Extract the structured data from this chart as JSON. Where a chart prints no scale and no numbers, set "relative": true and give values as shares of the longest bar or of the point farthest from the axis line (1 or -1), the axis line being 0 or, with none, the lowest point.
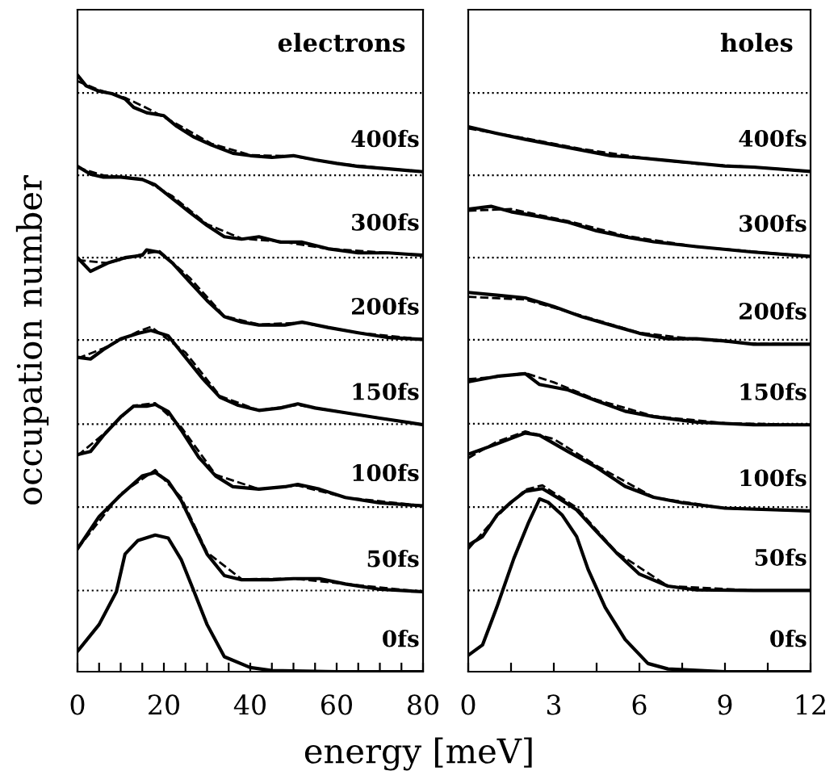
{
  "chart_data": [
    {
      "type": "line",
      "title": "electrons",
      "xlabel": "energy [meV]",
      "ylabel": "occupation number",
      "relative": true,
      "tick_labels": "x",
      "legend": false,
      "grid": false,
      "xlim": [
        0,
        80
      ],
      "xticks": [
        0,
        {
          "value": 5,
          "label": null
        },
        {
          "value": 10,
          "label": null
        },
        {
          "value": 15,
          "label": null
        },
        20,
        {
          "value": 25,
          "label": null
        },
        {
          "value": 30,
          "label": null
        },
        {
          "value": 35,
          "label": null
        },
        40,
        {
          "value": 45,
          "label": null
        },
        {
          "value": 50,
          "label": null
        },
        {
          "value": 55,
          "label": null
        },
        60,
        {
          "value": 65,
          "label": null
        },
        {
          "value": 70,
          "label": null
        },
        {
          "value": 75,
          "label": null
        },
        80
      ],
      "ref_lines": [
        {
          "axis": "y",
          "value": 0.136,
          "line_style": "dotted",
          "color": "#000000"
        },
        {
          "axis": "y",
          "value": 0.276,
          "line_style": "dotted",
          "color": "#000000"
        },
        {
          "axis": "y",
          "value": 0.415,
          "line_style": "dotted",
          "color": "#000000"
        },
        {
          "axis": "y",
          "value": 0.556,
          "line_style": "dotted",
          "color": "#000000"
        },
        {
          "axis": "y",
          "value": 0.694,
          "line_style": "dotted",
          "color": "#000000"
        },
        {
          "axis": "y",
          "value": 0.832,
          "line_style": "dotted",
          "color": "#000000"
        },
        {
          "axis": "y",
          "value": 0.97,
          "line_style": "dotted",
          "color": "#000000"
        }
      ],
      "series": [
        {
          "name": "0fs",
          "color": "#000000",
          "line_style": "solid",
          "x": [
            0,
            5,
            9,
            11,
            14,
            18,
            21,
            24,
            27,
            30,
            34,
            40,
            45,
            60,
            80
          ],
          "values": [
            0.034,
            0.079,
            0.134,
            0.197,
            0.22,
            0.229,
            0.224,
            0.188,
            0.134,
            0.079,
            0.025,
            0.007,
            0.002,
            0,
            0
          ]
        },
        {
          "name": "50fs",
          "color": "#000000",
          "line_style": "solid",
          "x": [
            0,
            5,
            10,
            15,
            18,
            21,
            24,
            27,
            30,
            34,
            38,
            45,
            50,
            56,
            62,
            70,
            80
          ],
          "values": [
            0.206,
            0.26,
            0.296,
            0.328,
            0.334,
            0.319,
            0.287,
            0.242,
            0.197,
            0.161,
            0.154,
            0.154,
            0.156,
            0.156,
            0.147,
            0.138,
            0.134
          ]
        },
        {
          "color": "#000000",
          "line_style": "dashed",
          "x": [
            0,
            10,
            18,
            24,
            30,
            38,
            50,
            62,
            80
          ],
          "values": [
            0.206,
            0.298,
            0.338,
            0.292,
            0.2,
            0.155,
            0.156,
            0.147,
            0.134
          ]
        },
        {
          "name": "100fs",
          "color": "#000000",
          "line_style": "solid",
          "x": [
            0,
            3,
            6,
            10,
            13,
            16,
            18,
            21,
            24,
            28,
            32,
            36,
            42,
            48,
            51,
            56,
            62,
            70,
            80
          ],
          "values": [
            0.364,
            0.369,
            0.396,
            0.427,
            0.445,
            0.445,
            0.448,
            0.436,
            0.405,
            0.36,
            0.328,
            0.31,
            0.306,
            0.31,
            0.314,
            0.306,
            0.292,
            0.283,
            0.278
          ]
        },
        {
          "color": "#000000",
          "line_style": "dashed",
          "x": [
            0,
            6,
            13,
            18,
            24,
            32,
            42,
            51,
            62,
            80
          ],
          "values": [
            0.362,
            0.398,
            0.446,
            0.45,
            0.41,
            0.33,
            0.306,
            0.312,
            0.292,
            0.278
          ]
        },
        {
          "name": "150fs",
          "color": "#000000",
          "line_style": "solid",
          "x": [
            0,
            3,
            6,
            10,
            14,
            17,
            21,
            25,
            29,
            33,
            37,
            42,
            47,
            51,
            55,
            62,
            70,
            80
          ],
          "values": [
            0.527,
            0.524,
            0.54,
            0.558,
            0.567,
            0.572,
            0.563,
            0.527,
            0.491,
            0.46,
            0.447,
            0.438,
            0.442,
            0.449,
            0.442,
            0.434,
            0.425,
            0.414
          ]
        },
        {
          "color": "#000000",
          "line_style": "dashed",
          "x": [
            0,
            6,
            14,
            17,
            25,
            33,
            42,
            51,
            62,
            80
          ],
          "values": [
            0.525,
            0.542,
            0.57,
            0.578,
            0.535,
            0.462,
            0.438,
            0.447,
            0.434,
            0.414
          ]
        },
        {
          "name": "200fs",
          "color": "#000000",
          "line_style": "solid",
          "x": [
            0,
            3,
            7,
            11,
            15,
            16,
            19,
            22,
            26,
            30,
            34,
            38,
            42,
            48,
            52,
            58,
            65,
            72,
            80
          ],
          "values": [
            0.694,
            0.671,
            0.685,
            0.694,
            0.698,
            0.707,
            0.703,
            0.685,
            0.653,
            0.622,
            0.595,
            0.586,
            0.581,
            0.581,
            0.586,
            0.577,
            0.568,
            0.56,
            0.557
          ]
        },
        {
          "color": "#000000",
          "line_style": "dashed",
          "x": [
            0,
            7,
            15,
            19,
            26,
            34,
            42,
            52,
            65,
            80
          ],
          "values": [
            0.69,
            0.685,
            0.7,
            0.705,
            0.66,
            0.596,
            0.582,
            0.585,
            0.568,
            0.557
          ]
        },
        {
          "name": "300fs",
          "color": "#000000",
          "line_style": "solid",
          "x": [
            0,
            3,
            6,
            10,
            15,
            18,
            22,
            26,
            30,
            34,
            38,
            42,
            47,
            52,
            58,
            65,
            72,
            80
          ],
          "values": [
            0.847,
            0.834,
            0.829,
            0.829,
            0.825,
            0.816,
            0.793,
            0.77,
            0.748,
            0.729,
            0.725,
            0.729,
            0.72,
            0.72,
            0.709,
            0.702,
            0.702,
            0.698
          ]
        },
        {
          "color": "#000000",
          "line_style": "dashed",
          "x": [
            0,
            6,
            15,
            22,
            30,
            38,
            47,
            58,
            72,
            80
          ],
          "values": [
            0.845,
            0.832,
            0.826,
            0.797,
            0.75,
            0.726,
            0.721,
            0.709,
            0.702,
            0.698
          ]
        },
        {
          "name": "400fs",
          "color": "#000000",
          "line_style": "solid",
          "x": [
            0,
            2,
            5,
            8,
            11,
            13,
            16,
            20,
            23,
            27,
            31,
            36,
            40,
            45,
            50,
            55,
            60,
            65,
            72,
            80
          ],
          "values": [
            1.0,
            0.982,
            0.973,
            0.969,
            0.96,
            0.946,
            0.937,
            0.932,
            0.914,
            0.896,
            0.883,
            0.869,
            0.865,
            0.862,
            0.865,
            0.858,
            0.852,
            0.847,
            0.843,
            0.838
          ]
        },
        {
          "color": "#000000",
          "line_style": "dashed",
          "x": [
            0,
            5,
            11,
            16,
            23,
            31,
            40,
            50,
            60,
            72,
            80
          ],
          "values": [
            0.99,
            0.975,
            0.962,
            0.945,
            0.918,
            0.885,
            0.866,
            0.864,
            0.852,
            0.843,
            0.838
          ]
        }
      ]
    },
    {
      "type": "line",
      "title": "holes",
      "relative": true,
      "tick_labels": "x",
      "legend": false,
      "grid": false,
      "xlim": [
        0,
        12
      ],
      "xticks": [
        0,
        {
          "value": 1.5,
          "label": null
        },
        3,
        {
          "value": 4.5,
          "label": null
        },
        6,
        {
          "value": 7.5,
          "label": null
        },
        9,
        {
          "value": 10.5,
          "label": null
        },
        12
      ],
      "ref_lines": [
        {
          "axis": "y",
          "value": 0.149,
          "line_style": "dotted",
          "color": "#000000"
        },
        {
          "axis": "y",
          "value": 0.302,
          "line_style": "dotted",
          "color": "#000000"
        },
        {
          "axis": "y",
          "value": 0.455,
          "line_style": "dotted",
          "color": "#000000"
        },
        {
          "axis": "y",
          "value": 0.609,
          "line_style": "dotted",
          "color": "#000000"
        },
        {
          "axis": "y",
          "value": 0.76,
          "line_style": "dotted",
          "color": "#000000"
        },
        {
          "axis": "y",
          "value": 0.911,
          "line_style": "dotted",
          "color": "#000000"
        },
        {
          "axis": "y",
          "value": 1.062,
          "line_style": "dotted",
          "color": "#000000"
        }
      ],
      "series": [
        {
          "name": "0fs",
          "color": "#000000",
          "line_style": "solid",
          "x": [
            0,
            0.5,
            1,
            1.6,
            2.1,
            2.5,
            2.8,
            3.3,
            3.8,
            4.2,
            4.8,
            5.5,
            6.3,
            7,
            9,
            12
          ],
          "values": [
            0.03,
            0.049,
            0.118,
            0.208,
            0.272,
            0.317,
            0.311,
            0.287,
            0.248,
            0.188,
            0.118,
            0.059,
            0.015,
            0.005,
            0,
            0
          ]
        },
        {
          "name": "50fs",
          "color": "#000000",
          "line_style": "solid",
          "x": [
            0,
            0.5,
            1,
            1.5,
            2,
            2.6,
            3.2,
            3.8,
            4.5,
            5.2,
            6,
            7,
            8,
            10,
            12
          ],
          "values": [
            0.232,
            0.248,
            0.287,
            0.311,
            0.331,
            0.336,
            0.317,
            0.297,
            0.257,
            0.218,
            0.179,
            0.157,
            0.15,
            0.149,
            0.149
          ]
        },
        {
          "color": "#000000",
          "line_style": "dashed",
          "x": [
            0,
            1,
            2,
            2.6,
            3.8,
            5.2,
            7,
            10,
            12
          ],
          "values": [
            0.225,
            0.285,
            0.334,
            0.342,
            0.301,
            0.219,
            0.157,
            0.149,
            0.149
          ]
        },
        {
          "name": "100fs",
          "color": "#000000",
          "line_style": "solid",
          "x": [
            0,
            1,
            2,
            2.5,
            3.5,
            4.5,
            5.5,
            6.5,
            7.5,
            9,
            12
          ],
          "values": [
            0.399,
            0.418,
            0.438,
            0.434,
            0.404,
            0.375,
            0.34,
            0.32,
            0.31,
            0.3,
            0.295
          ]
        },
        {
          "color": "#000000",
          "line_style": "dashed",
          "x": [
            0,
            1,
            2,
            3,
            4.5,
            6.5,
            9,
            12
          ],
          "values": [
            0.392,
            0.422,
            0.441,
            0.427,
            0.378,
            0.32,
            0.3,
            0.295
          ]
        },
        {
          "name": "150fs",
          "color": "#000000",
          "line_style": "solid",
          "x": [
            0,
            1,
            2,
            2.5,
            3.5,
            4.5,
            5.5,
            6.5,
            8,
            10,
            12
          ],
          "values": [
            0.532,
            0.542,
            0.547,
            0.527,
            0.517,
            0.497,
            0.478,
            0.468,
            0.458,
            0.453,
            0.453
          ]
        },
        {
          "color": "#000000",
          "line_style": "dashed",
          "x": [
            0,
            1,
            2,
            3,
            4.5,
            6.5,
            9,
            12
          ],
          "values": [
            0.537,
            0.541,
            0.548,
            0.531,
            0.499,
            0.469,
            0.456,
            0.453
          ]
        },
        {
          "name": "200fs",
          "color": "#000000",
          "line_style": "solid",
          "x": [
            0,
            1,
            2,
            3,
            4,
            5,
            6,
            7,
            8,
            9,
            10,
            12
          ],
          "values": [
            0.696,
            0.691,
            0.686,
            0.67,
            0.651,
            0.636,
            0.621,
            0.611,
            0.611,
            0.607,
            0.601,
            0.601
          ]
        },
        {
          "color": "#000000",
          "line_style": "dashed",
          "x": [
            0,
            2,
            4,
            6,
            8,
            10,
            12
          ],
          "values": [
            0.688,
            0.683,
            0.653,
            0.622,
            0.61,
            0.602,
            0.601
          ]
        },
        {
          "name": "300fs",
          "color": "#000000",
          "line_style": "solid",
          "x": [
            0,
            0.8,
            1.5,
            2.5,
            3.5,
            4.5,
            5.5,
            6.5,
            8,
            10,
            12
          ],
          "values": [
            0.849,
            0.854,
            0.844,
            0.835,
            0.825,
            0.809,
            0.798,
            0.789,
            0.78,
            0.77,
            0.762
          ]
        },
        {
          "color": "#000000",
          "line_style": "dashed",
          "x": [
            0,
            1.5,
            3.5,
            5.5,
            8,
            12
          ],
          "values": [
            0.846,
            0.849,
            0.827,
            0.8,
            0.78,
            0.762
          ]
        },
        {
          "name": "400fs",
          "color": "#000000",
          "line_style": "solid",
          "x": [
            0,
            1,
            2,
            3,
            4,
            5,
            6,
            7,
            8,
            9,
            10,
            12
          ],
          "values": [
            1.0,
            0.988,
            0.977,
            0.967,
            0.957,
            0.947,
            0.943,
            0.938,
            0.933,
            0.928,
            0.926,
            0.918
          ]
        },
        {
          "color": "#000000",
          "line_style": "dashed",
          "x": [
            0,
            2,
            4,
            6,
            8,
            10,
            12
          ],
          "values": [
            0.997,
            0.979,
            0.959,
            0.944,
            0.932,
            0.926,
            0.918
          ]
        }
      ]
    }
  ]
}
